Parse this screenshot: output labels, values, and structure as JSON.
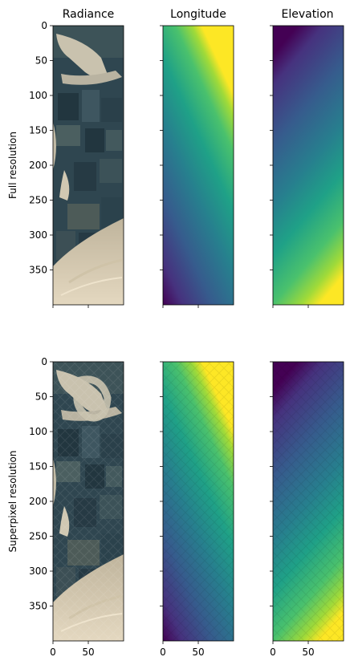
{
  "chart_data": {
    "type": "heatmap",
    "rows": [
      {
        "label": "Full resolution",
        "texture": "full"
      },
      {
        "label": "Superpixel resolution",
        "texture": "superpixel"
      }
    ],
    "columns": [
      {
        "title": "Radiance",
        "colormap": "satellite-rgb"
      },
      {
        "title": "Longitude",
        "colormap": "viridis"
      },
      {
        "title": "Elevation",
        "colormap": "viridis"
      }
    ],
    "image_width": 100,
    "image_height": 400,
    "y_ticks": [
      0,
      50,
      100,
      150,
      200,
      250,
      300,
      350
    ],
    "x_ticks": [
      0,
      50
    ],
    "shared_axes": {
      "x_labels_bottom_row_only": true,
      "y_labels_first_column_only": true
    }
  }
}
